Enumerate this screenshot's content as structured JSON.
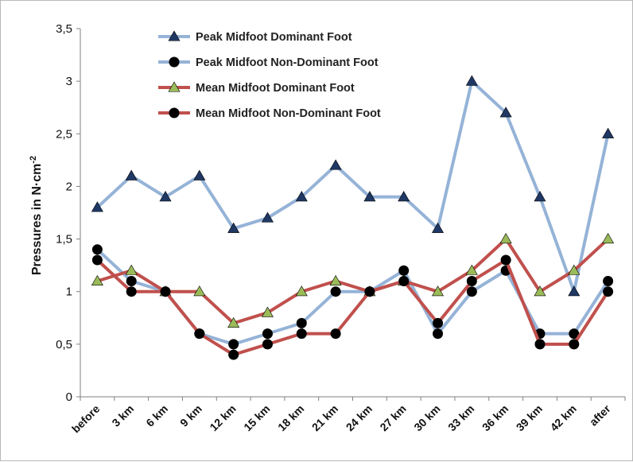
{
  "chart_data": {
    "type": "line",
    "title": "",
    "xlabel": "",
    "ylabel": {
      "base": "Pressures in N·cm",
      "superscript": "-2"
    },
    "ylim": [
      0,
      3.5
    ],
    "yticks": [
      "0",
      "0,5",
      "1",
      "1,5",
      "2",
      "2,5",
      "3",
      "3,5"
    ],
    "grid": "none",
    "legend_position": "top-left",
    "categories": [
      "before",
      "3 km",
      "6 km",
      "9 km",
      "12 km",
      "15 km",
      "18 km",
      "21 km",
      "24 km",
      "27 km",
      "30 km",
      "33 km",
      "36 km",
      "39 km",
      "42 km",
      "after"
    ],
    "series": [
      {
        "name": "Peak Midfoot Dominant Foot",
        "color": "#95b3d7",
        "marker": "triangle",
        "values": [
          1.8,
          2.1,
          1.9,
          2.1,
          1.6,
          1.7,
          1.9,
          2.2,
          1.9,
          1.9,
          1.6,
          3.0,
          2.7,
          1.9,
          1.0,
          2.5
        ]
      },
      {
        "name": "Peak Midfoot Non-Dominant Foot",
        "color": "#95b3d7",
        "marker": "circle",
        "values": [
          1.4,
          1.1,
          1.0,
          0.6,
          0.5,
          0.6,
          0.7,
          1.0,
          1.0,
          1.2,
          0.6,
          1.0,
          1.2,
          0.6,
          0.6,
          1.1
        ]
      },
      {
        "name": "Mean Midfoot Dominant Foot",
        "color": "#c0504d",
        "marker": "triangle",
        "values": [
          1.1,
          1.2,
          1.0,
          1.0,
          0.7,
          0.8,
          1.0,
          1.1,
          1.0,
          1.1,
          1.0,
          1.2,
          1.5,
          1.0,
          1.2,
          1.5
        ]
      },
      {
        "name": "Mean Midfoot Non-Dominant Foot",
        "color": "#c0504d",
        "marker": "circle",
        "values": [
          1.3,
          1.0,
          1.0,
          0.6,
          0.4,
          0.5,
          0.6,
          0.6,
          1.0,
          1.1,
          0.7,
          1.1,
          1.3,
          0.5,
          0.5,
          1.0
        ]
      }
    ]
  }
}
